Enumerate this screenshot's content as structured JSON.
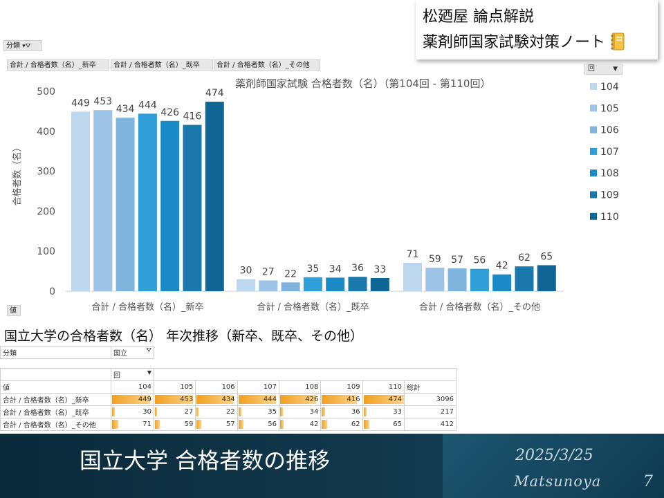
{
  "brand": {
    "line1": "松廼屋 論点解説",
    "line2": "薬剤師国家試験対策ノート",
    "notebook_icon": "notebook-icon"
  },
  "filter_chip": "分類",
  "category_chips": [
    "合計 / 合格者数（名）_新卒",
    "合計 / 合格者数（名）_既卒",
    "合計 / 合格者数（名）_その他"
  ],
  "value_chip": "値",
  "legend_field": "回",
  "chart_data": {
    "type": "bar",
    "title": "薬剤師国家試験 合格者数（名）（第104回 - 第110回）",
    "ylabel": "合格者数（名）",
    "ylim": [
      0,
      500
    ],
    "yticks": [
      0,
      100,
      200,
      300,
      400,
      500
    ],
    "categories": [
      "合計 / 合格者数（名）_新卒",
      "合計 / 合格者数（名）_既卒",
      "合計 / 合格者数（名）_その他"
    ],
    "series": [
      {
        "name": "104",
        "color": "#bdd7ee",
        "values": [
          449,
          30,
          71
        ]
      },
      {
        "name": "105",
        "color": "#9dc3e6",
        "values": [
          453,
          27,
          59
        ]
      },
      {
        "name": "106",
        "color": "#7fb4df",
        "values": [
          434,
          22,
          57
        ]
      },
      {
        "name": "107",
        "color": "#2e9fd8",
        "values": [
          444,
          35,
          56
        ]
      },
      {
        "name": "108",
        "color": "#1a8bc6",
        "values": [
          426,
          34,
          42
        ]
      },
      {
        "name": "109",
        "color": "#1a78ad",
        "values": [
          416,
          36,
          62
        ]
      },
      {
        "name": "110",
        "color": "#0f6694",
        "values": [
          474,
          33,
          65
        ]
      }
    ],
    "grid": false,
    "legend": "right"
  },
  "subtitle": "国立大学の合格者数（名） 年次推移（新卒、既卒、その他）",
  "pivot": {
    "filter_label": "分類",
    "filter_value": "国立",
    "col_field": "回",
    "row_header": "値",
    "columns": [
      "104",
      "105",
      "106",
      "107",
      "108",
      "109",
      "110"
    ],
    "total_label": "総計",
    "rows": [
      {
        "label": "合計 / 合格者数（名）_新卒",
        "values": [
          "449",
          "453",
          "434",
          "444",
          "426",
          "416",
          "474"
        ],
        "total": "3096"
      },
      {
        "label": "合計 / 合格者数（名）_既卒",
        "values": [
          "30",
          "27",
          "22",
          "35",
          "34",
          "36",
          "33"
        ],
        "total": "217"
      },
      {
        "label": "合計 / 合格者数（名）_その他",
        "values": [
          "71",
          "59",
          "57",
          "56",
          "42",
          "62",
          "65"
        ],
        "total": "412"
      }
    ]
  },
  "footer": {
    "title": "国立大学 合格者数の推移",
    "date": "2025/3/25",
    "author": "Matsunoya",
    "page": "7"
  }
}
